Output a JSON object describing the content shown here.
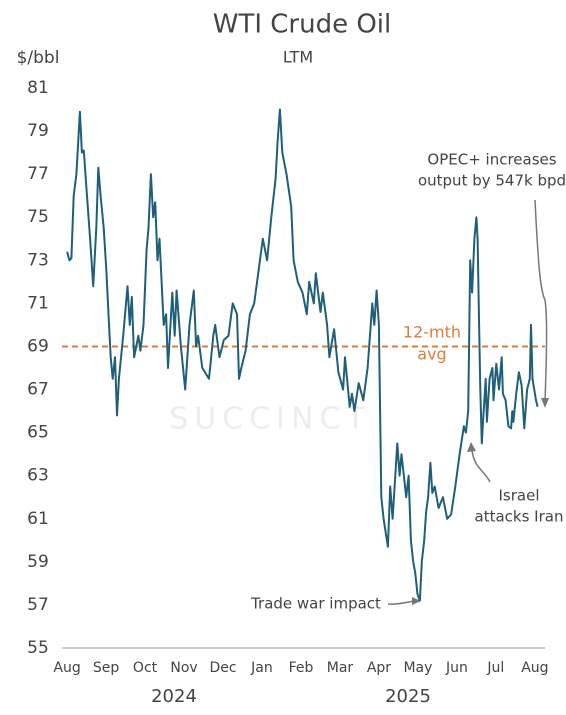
{
  "chart_data": {
    "type": "line",
    "title": "WTI Crude Oil",
    "subtitle": "LTM",
    "y_axis_label": "$/bbl",
    "watermark": "SUCCINCT",
    "years": [
      "2024",
      "2025"
    ],
    "xlim": [
      -0.13,
      12.26
    ],
    "xticks": [
      {
        "value": 0,
        "label": "Aug"
      },
      {
        "value": 1,
        "label": "Sep"
      },
      {
        "value": 2,
        "label": "Oct"
      },
      {
        "value": 3,
        "label": "Nov"
      },
      {
        "value": 4,
        "label": "Dec"
      },
      {
        "value": 5,
        "label": "Jan"
      },
      {
        "value": 6,
        "label": "Feb"
      },
      {
        "value": 7,
        "label": "Mar"
      },
      {
        "value": 8,
        "label": "Apr"
      },
      {
        "value": 9,
        "label": "May"
      },
      {
        "value": 10,
        "label": "Jun"
      },
      {
        "value": 11,
        "label": "Jul"
      },
      {
        "value": 12,
        "label": "Aug"
      }
    ],
    "ylim": [
      55,
      81
    ],
    "yticks": [
      55,
      57,
      59,
      61,
      63,
      65,
      67,
      69,
      71,
      73,
      75,
      77,
      79,
      81
    ],
    "reference_line": {
      "value": 69,
      "label": [
        "12-mth",
        "avg"
      ],
      "color": "#e07b39"
    },
    "annotations": [
      {
        "text": [
          "OPEC+ increases",
          "output by 547k bpd"
        ]
      },
      {
        "text": [
          "Israel",
          "attacks Iran"
        ]
      },
      {
        "text": [
          "Trade war impact"
        ]
      }
    ],
    "series": [
      {
        "name": "WTI",
        "color": "#1f5f7a",
        "x": [
          0,
          0.06,
          0.11,
          0.17,
          0.24,
          0.33,
          0.38,
          0.43,
          0.49,
          0.59,
          0.67,
          0.75,
          0.8,
          0.86,
          0.94,
          1.01,
          1.07,
          1.12,
          1.17,
          1.23,
          1.28,
          1.33,
          1.44,
          1.55,
          1.61,
          1.66,
          1.72,
          1.83,
          1.88,
          1.96,
          2.04,
          2.09,
          2.15,
          2.21,
          2.26,
          2.32,
          2.37,
          2.48,
          2.54,
          2.59,
          2.7,
          2.76,
          2.81,
          2.92,
          3.03,
          3.14,
          3.25,
          3.31,
          3.36,
          3.47,
          3.64,
          3.75,
          3.8,
          3.91,
          4.02,
          4.14,
          4.25,
          4.36,
          4.41,
          4.47,
          4.58,
          4.69,
          4.8,
          4.91,
          5.02,
          5.13,
          5.24,
          5.35,
          5.4,
          5.46,
          5.52,
          5.63,
          5.75,
          5.81,
          5.92,
          6.04,
          6.15,
          6.21,
          6.33,
          6.38,
          6.5,
          6.56,
          6.67,
          6.73,
          6.85,
          6.96,
          7.08,
          7.13,
          7.25,
          7.31,
          7.37,
          7.48,
          7.6,
          7.71,
          7.83,
          7.88,
          7.94,
          8.0,
          8.06,
          8.12,
          8.23,
          8.29,
          8.35,
          8.47,
          8.53,
          8.58,
          8.7,
          8.76,
          8.82,
          8.88,
          8.93,
          8.99,
          9.05,
          9.1,
          9.16,
          9.21,
          9.26,
          9.32,
          9.37,
          9.43,
          9.53,
          9.64,
          9.75,
          9.85,
          9.96,
          10.07,
          10.18,
          10.23,
          10.29,
          10.34,
          10.39,
          10.45,
          10.5,
          10.53,
          10.57,
          10.6,
          10.64,
          10.67,
          10.74,
          10.77,
          10.84,
          10.91,
          10.94,
          11.01,
          11.08,
          11.15,
          11.18,
          11.25,
          11.32,
          11.39,
          11.42,
          11.45,
          11.52,
          11.59,
          11.66,
          11.73,
          11.8,
          11.87,
          11.9,
          11.94,
          12.03,
          12.07
        ],
        "values": [
          73.4,
          73.0,
          73.1,
          76.0,
          77.0,
          79.9,
          78.0,
          78.1,
          76.5,
          74.0,
          71.8,
          74.5,
          77.3,
          76.0,
          74.5,
          72.5,
          70.2,
          68.5,
          67.5,
          68.5,
          65.8,
          67.5,
          69.5,
          71.8,
          70.0,
          71.3,
          68.5,
          69.5,
          68.8,
          70.0,
          73.5,
          74.5,
          77.0,
          75.0,
          75.7,
          73.0,
          74.0,
          70.0,
          70.5,
          68.0,
          71.5,
          69.5,
          71.6,
          69.0,
          67.0,
          70.0,
          71.6,
          69.0,
          69.5,
          68.0,
          67.5,
          69.5,
          70.0,
          68.5,
          69.3,
          69.5,
          71.0,
          70.5,
          67.5,
          68.0,
          68.8,
          70.5,
          71.0,
          72.5,
          74.0,
          73.0,
          75.0,
          76.8,
          78.5,
          80.0,
          78.0,
          77.0,
          75.5,
          73.0,
          72.0,
          71.5,
          70.5,
          72.0,
          71.0,
          72.4,
          70.6,
          71.5,
          70.0,
          68.5,
          69.8,
          67.8,
          67.0,
          68.5,
          66.2,
          66.8,
          66.0,
          67.3,
          66.5,
          68.0,
          71.0,
          70.0,
          71.6,
          70.0,
          62.0,
          61.0,
          59.7,
          62.5,
          61.0,
          64.5,
          63.0,
          64.0,
          62.0,
          63.0,
          60.0,
          59.0,
          58.5,
          57.5,
          57.2,
          59.0,
          60.0,
          61.3,
          62.0,
          63.6,
          62.2,
          62.5,
          61.5,
          62.0,
          61.0,
          61.2,
          62.5,
          64.0,
          65.3,
          65.0,
          66.0,
          73.0,
          71.5,
          74.0,
          75.0,
          74.0,
          70.0,
          67.0,
          64.5,
          65.5,
          67.5,
          65.5,
          67.5,
          68.0,
          66.5,
          68.2,
          67.0,
          68.5,
          66.8,
          66.5,
          65.3,
          65.2,
          66.0,
          65.5,
          66.8,
          67.8,
          67.2,
          65.2,
          67.0,
          67.5,
          70.0,
          67.5,
          66.5,
          66.2
        ]
      }
    ]
  }
}
